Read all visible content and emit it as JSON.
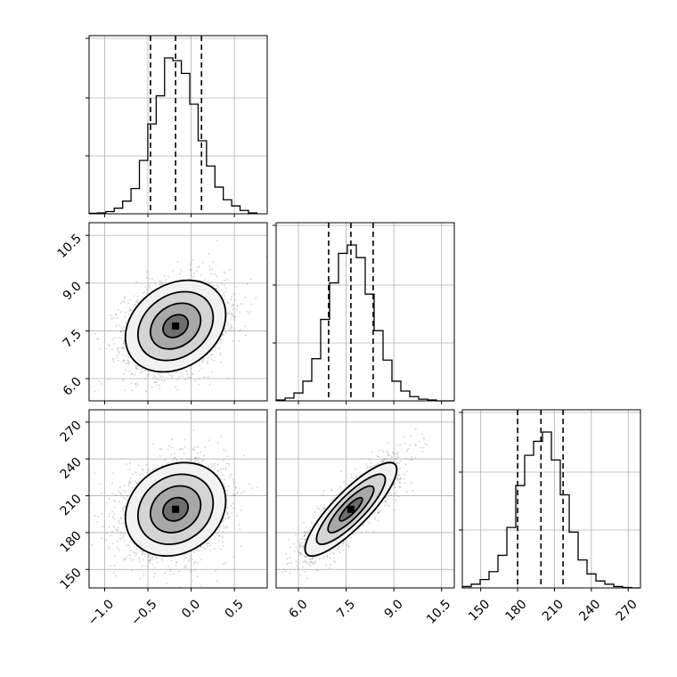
{
  "chart_data": {
    "type": "corner",
    "parameters": [
      {
        "id": "p0",
        "label": "",
        "range": [
          -1.18,
          0.88
        ],
        "ticks": [
          -1.0,
          -0.5,
          0.0,
          0.5
        ],
        "tick_labels": [
          "−1.0",
          "−0.5",
          "0.0",
          "0.5"
        ]
      },
      {
        "id": "p1",
        "label": "",
        "range": [
          5.3,
          10.9
        ],
        "ticks": [
          6.0,
          7.5,
          9.0,
          10.5
        ],
        "tick_labels": [
          "6.0",
          "7.5",
          "9.0",
          "10.5"
        ]
      },
      {
        "id": "p2",
        "label": "",
        "range": [
          135,
          280
        ],
        "ticks": [
          150,
          180,
          210,
          240,
          270
        ],
        "tick_labels": [
          "150",
          "180",
          "210",
          "240",
          "270"
        ]
      }
    ],
    "quantiles": [
      [
        -0.47,
        -0.18,
        0.12
      ],
      [
        6.95,
        7.65,
        8.35
      ],
      [
        180,
        199,
        217
      ]
    ],
    "histograms": [
      {
        "bins": [
          -1.18,
          -1.083,
          -0.986,
          -0.889,
          -0.792,
          -0.695,
          -0.598,
          -0.501,
          -0.404,
          -0.307,
          -0.21,
          -0.113,
          -0.016,
          0.081,
          0.178,
          0.275,
          0.372,
          0.469,
          0.566,
          0.663,
          0.76
        ],
        "counts": [
          2,
          3,
          8,
          20,
          45,
          90,
          190,
          320,
          420,
          555,
          545,
          500,
          390,
          260,
          170,
          95,
          50,
          28,
          12,
          3
        ]
      },
      {
        "bins": [
          5.3,
          5.58,
          5.86,
          6.14,
          6.42,
          6.7,
          6.98,
          7.26,
          7.54,
          7.82,
          8.1,
          8.38,
          8.66,
          8.94,
          9.22,
          9.5,
          9.78,
          10.06,
          10.34,
          10.62,
          10.9
        ],
        "counts": [
          3,
          10,
          28,
          70,
          150,
          290,
          420,
          525,
          555,
          510,
          380,
          250,
          145,
          70,
          35,
          15,
          6,
          3,
          0,
          0
        ]
      },
      {
        "bins": [
          135,
          142.25,
          149.5,
          156.75,
          164,
          171.25,
          178.5,
          185.75,
          193,
          200.25,
          207.5,
          214.75,
          222,
          229.25,
          236.5,
          243.75,
          251,
          258.25,
          265.5,
          272.75,
          280
        ],
        "counts": [
          3,
          8,
          18,
          35,
          70,
          130,
          220,
          285,
          315,
          335,
          275,
          200,
          120,
          60,
          30,
          15,
          8,
          3,
          1,
          0
        ]
      }
    ],
    "pairs": [
      {
        "x": "p0",
        "y": "p1",
        "mean": [
          -0.18,
          7.65
        ],
        "sd": [
          0.29,
          0.72
        ],
        "rho": 0.25
      },
      {
        "x": "p0",
        "y": "p2",
        "mean": [
          -0.18,
          199
        ],
        "sd": [
          0.29,
          19
        ],
        "rho": 0.18
      },
      {
        "x": "p1",
        "y": "p2",
        "mean": [
          7.65,
          199
        ],
        "sd": [
          0.72,
          19
        ],
        "rho": 0.85
      }
    ],
    "contour_levels": [
      0.5,
      1.0,
      1.5,
      2.0
    ],
    "grid": true,
    "colors": {
      "line": "#000000",
      "grid": "#b0b0b0",
      "points": "#555555"
    }
  }
}
